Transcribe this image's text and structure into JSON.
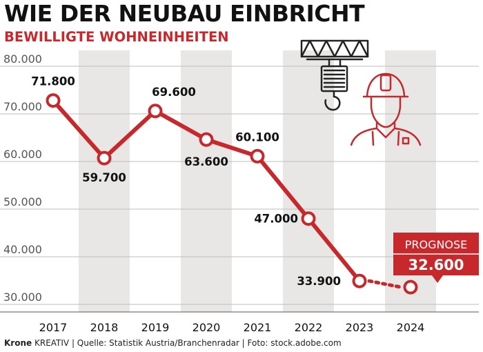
{
  "header": {
    "title": "WIE DER NEUBAU EINBRICHT",
    "subtitle": "BEWILLIGTE WOHNEINHEITEN"
  },
  "footer": {
    "brand": "Krone",
    "text": "KREATIV | Quelle: Statistik Austria/Branchenradar | Foto: stock.adobe.com"
  },
  "colors": {
    "accent": "#c6282c",
    "grid": "#bdbdbd",
    "band": "#e8e7e5",
    "text": "#111111"
  },
  "icons": [
    "crane-hook-icon",
    "construction-worker-icon"
  ],
  "chart_data": {
    "type": "line",
    "title": "WIE DER NEUBAU EINBRICHT",
    "subtitle": "BEWILLIGTE WOHNEINHEITEN",
    "categories": [
      "2017",
      "2018",
      "2019",
      "2020",
      "2021",
      "2022",
      "2023",
      "2024"
    ],
    "values": [
      71800,
      59700,
      69600,
      63600,
      60100,
      47000,
      33900,
      32600
    ],
    "value_labels": [
      "71.800",
      "59.700",
      "69.600",
      "63.600",
      "60.100",
      "47.000",
      "33.900",
      "32.600"
    ],
    "forecast_index": 7,
    "forecast_label": "PROGNOSE",
    "forecast_value_label": "32.600",
    "y_ticks": [
      "80.000",
      "70.000",
      "60.000",
      "50.000",
      "40.000",
      "30.000"
    ],
    "y_tick_values": [
      80000,
      70000,
      60000,
      50000,
      40000,
      30000
    ],
    "ylim": [
      28000,
      80000
    ],
    "grid": true,
    "xlabel": "",
    "ylabel": ""
  }
}
